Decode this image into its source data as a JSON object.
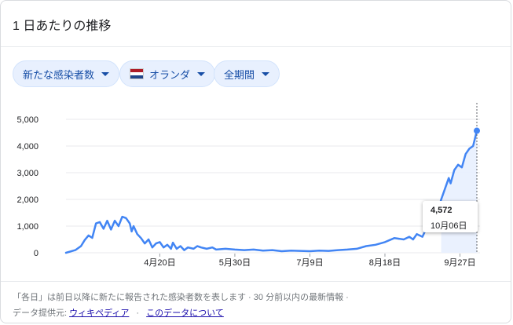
{
  "card": {
    "title": "1 日あたりの推移",
    "filters": [
      {
        "label": "新たな感染者数"
      },
      {
        "label": "オランダ"
      },
      {
        "label": "全期間"
      }
    ],
    "footnote": "「各日」は前日以降に新たに報告された感染者数を表します · 30 分前以内の最新情報 ·",
    "source_label": "データ提供元:",
    "source_link": "ウィキペディア",
    "about_link": "このデータについて",
    "separator": "·"
  },
  "colors": {
    "line": "#4285f4",
    "area": "#e8f0fe",
    "grid": "#e8eaed",
    "flag_red": "#ae1c28",
    "flag_white": "#ffffff",
    "flag_blue": "#21468b"
  },
  "chart_data": {
    "type": "line",
    "ylim": [
      0,
      5000
    ],
    "yticks": [
      0,
      1000,
      2000,
      3000,
      4000,
      5000
    ],
    "ytick_labels": [
      "0",
      "1,000",
      "2,000",
      "3,000",
      "4,000",
      "5,000"
    ],
    "xtick_labels": [
      "4月20日",
      "5月30日",
      "7月9日",
      "8月18日",
      "9月27日"
    ],
    "xtick_days": [
      50,
      90,
      130,
      170,
      210
    ],
    "x_range": [
      0,
      219
    ],
    "series_day": [
      0,
      5,
      8,
      10,
      12,
      14,
      16,
      18,
      20,
      22,
      24,
      26,
      28,
      30,
      32,
      34,
      35,
      36,
      38,
      40,
      42,
      44,
      46,
      48,
      50,
      52,
      54,
      56,
      57,
      59,
      61,
      63,
      65,
      68,
      70,
      72,
      75,
      78,
      80,
      85,
      90,
      95,
      100,
      105,
      110,
      115,
      120,
      125,
      130,
      135,
      140,
      145,
      150,
      155,
      160,
      165,
      170,
      175,
      180,
      183,
      185,
      187,
      190,
      192,
      194,
      196,
      198,
      200,
      202,
      204,
      205,
      207,
      209,
      211,
      213,
      215,
      217,
      219
    ],
    "series_values": [
      0,
      100,
      250,
      480,
      650,
      560,
      1100,
      1150,
      900,
      1200,
      870,
      1200,
      1000,
      1350,
      1300,
      1100,
      800,
      1000,
      700,
      550,
      350,
      500,
      200,
      350,
      400,
      200,
      300,
      150,
      380,
      150,
      250,
      100,
      200,
      150,
      250,
      200,
      150,
      200,
      120,
      150,
      120,
      100,
      120,
      80,
      100,
      60,
      80,
      70,
      60,
      80,
      70,
      100,
      120,
      150,
      250,
      300,
      400,
      550,
      500,
      600,
      500,
      700,
      600,
      900,
      1000,
      1200,
      1500,
      2000,
      2400,
      2800,
      2600,
      3100,
      3300,
      3200,
      3700,
      3900,
      4000,
      4572
    ],
    "tooltip": {
      "value": "4,572",
      "date": "10月06日"
    }
  }
}
